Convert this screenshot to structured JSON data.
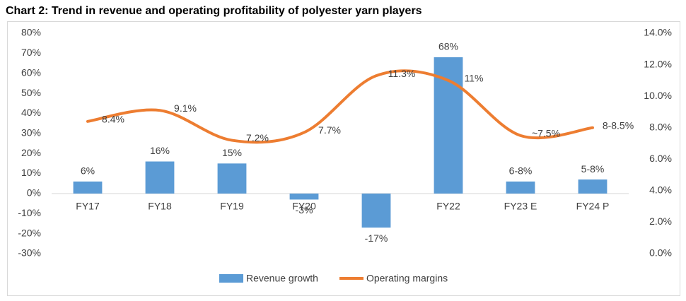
{
  "chart_data": {
    "type": "bar-line",
    "title": "Chart 2: Trend in revenue and operating profitability of polyester yarn players",
    "categories": [
      "FY17",
      "FY18",
      "FY19",
      "FY20",
      "FY21",
      "FY22",
      "FY23 E",
      "FY24 P"
    ],
    "series": [
      {
        "name": "Revenue growth",
        "type": "bar",
        "color": "#5b9bd5",
        "values": [
          6,
          16,
          15,
          -3,
          -17,
          68,
          6,
          7
        ],
        "value_labels": [
          "6%",
          "16%",
          "15%",
          "-3%",
          "-17%",
          "68%",
          "6-8%",
          "5-8%"
        ]
      },
      {
        "name": "Operating margins",
        "type": "line",
        "axis": "y2",
        "color": "#ed7d31",
        "values": [
          8.4,
          9.1,
          7.2,
          7.7,
          11.3,
          11,
          7.5,
          8
        ],
        "value_labels": [
          "8.4%",
          "9.1%",
          "7.2%",
          "7.7%",
          "11.3%",
          "11%",
          "~7.5%",
          "8-8.5%"
        ]
      }
    ],
    "ylim": [
      -30,
      80
    ],
    "yticks": [
      {
        "value": -30,
        "label": "-30%"
      },
      {
        "value": -20,
        "label": "-20%"
      },
      {
        "value": -10,
        "label": "-10%"
      },
      {
        "value": 0,
        "label": "0%"
      },
      {
        "value": 10,
        "label": "10%"
      },
      {
        "value": 20,
        "label": "20%"
      },
      {
        "value": 30,
        "label": "30%"
      },
      {
        "value": 40,
        "label": "40%"
      },
      {
        "value": 50,
        "label": "50%"
      },
      {
        "value": 60,
        "label": "60%"
      },
      {
        "value": 70,
        "label": "70%"
      },
      {
        "value": 80,
        "label": "80%"
      }
    ],
    "y2lim": [
      0,
      14
    ],
    "y2ticks": [
      {
        "value": 0,
        "label": "0.0%"
      },
      {
        "value": 2,
        "label": "2.0%"
      },
      {
        "value": 4,
        "label": "4.0%"
      },
      {
        "value": 6,
        "label": "6.0%"
      },
      {
        "value": 8,
        "label": "8.0%"
      },
      {
        "value": 10,
        "label": "10.0%"
      },
      {
        "value": 12,
        "label": "12.0%"
      },
      {
        "value": 14,
        "label": "14.0%"
      }
    ],
    "grid": false,
    "legend": "bottom"
  }
}
